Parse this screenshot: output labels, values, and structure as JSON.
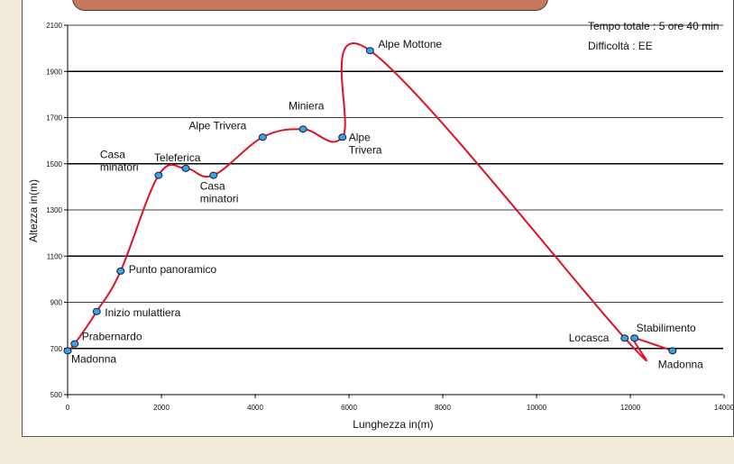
{
  "info": {
    "total_time": "Tempo totale : 5 ore 40 min",
    "difficulty": "Difficoltà : EE"
  },
  "colors": {
    "page_bg": "#f3eedb",
    "title_tab": "#c8785d",
    "line": "#e0102a",
    "marker": "#3da0e6"
  },
  "chart_data": {
    "type": "line",
    "title": "",
    "xlabel": "Lunghezza in(m)",
    "ylabel": "Altezza in(m)",
    "xlim": [
      0,
      14000
    ],
    "ylim": [
      500,
      2100
    ],
    "x_ticks": [
      0,
      2000,
      4000,
      6000,
      8000,
      10000,
      12000,
      14000
    ],
    "y_ticks": [
      500,
      700,
      900,
      1100,
      1300,
      1500,
      1700,
      1900,
      2100
    ],
    "major_gridlines_y": [
      700,
      1100,
      1500,
      1900
    ],
    "points": [
      {
        "x": 0,
        "y": 690,
        "label": "Madonna"
      },
      {
        "x": 150,
        "y": 720,
        "label": "Prabernardo"
      },
      {
        "x": 620,
        "y": 860,
        "label": "Inizio mulattiera"
      },
      {
        "x": 1130,
        "y": 1035,
        "label": "Punto panoramico"
      },
      {
        "x": 1940,
        "y": 1450,
        "label": "Casa minatori"
      },
      {
        "x": 2520,
        "y": 1480,
        "label": "Teleferica"
      },
      {
        "x": 3110,
        "y": 1450,
        "label": "Casa minatori"
      },
      {
        "x": 4160,
        "y": 1615,
        "label": "Alpe Trivera"
      },
      {
        "x": 5020,
        "y": 1650,
        "label": "Miniera"
      },
      {
        "x": 5860,
        "y": 1615,
        "label": "Alpe Trivera"
      },
      {
        "x": 6450,
        "y": 1990,
        "label": "Alpe Mottone"
      },
      {
        "x": 11880,
        "y": 745,
        "label": "Locasca"
      },
      {
        "x": 12090,
        "y": 745,
        "label": "Stabilimento"
      },
      {
        "x": 12900,
        "y": 690,
        "label": "Madonna"
      }
    ]
  }
}
